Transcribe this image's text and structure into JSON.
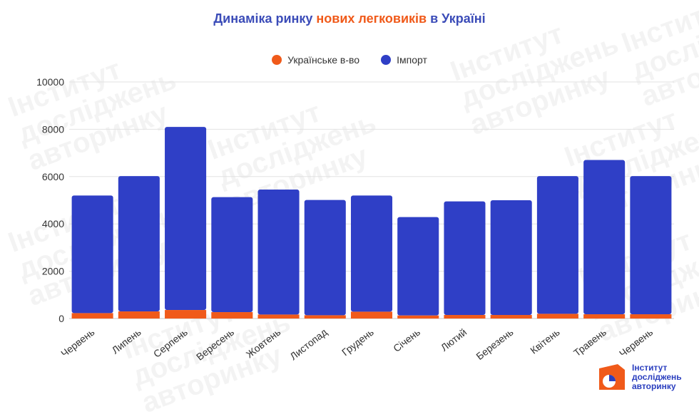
{
  "title": {
    "part1": "Динаміка ринку ",
    "accent": "нових легковиків",
    "part2": " в Україні"
  },
  "legend": [
    {
      "label": "Українське в-во",
      "color": "#f05a1a"
    },
    {
      "label": "Імпорт",
      "color": "#2f3fc6"
    }
  ],
  "watermark_text": "Інститут\nдосліджень\nавторинку",
  "logo": {
    "line1": "Інститут",
    "line2": "досліджень",
    "line3": "авторинку"
  },
  "chart_data": {
    "type": "bar",
    "stacked": true,
    "title": "Динаміка ринку нових легковиків в Україні",
    "xlabel": "",
    "ylabel": "",
    "ylim": [
      0,
      10000
    ],
    "yticks": [
      0,
      2000,
      4000,
      6000,
      8000,
      10000
    ],
    "grid": true,
    "legend_position": "top",
    "categories": [
      "Червень",
      "Липень",
      "Серпень",
      "Вересень",
      "Жовтень",
      "Листопад",
      "Грудень",
      "Січень",
      "Лютий",
      "Березень",
      "Квітень",
      "Травень",
      "Червень"
    ],
    "series": [
      {
        "name": "Українське в-во",
        "color": "#f05a1a",
        "values": [
          230,
          300,
          360,
          270,
          170,
          140,
          290,
          130,
          150,
          150,
          200,
          180,
          180
        ]
      },
      {
        "name": "Імпорт",
        "color": "#2f3fc6",
        "values": [
          4970,
          5720,
          7740,
          4860,
          5280,
          4870,
          4910,
          4160,
          4800,
          4850,
          5820,
          6520,
          5840
        ]
      }
    ]
  }
}
